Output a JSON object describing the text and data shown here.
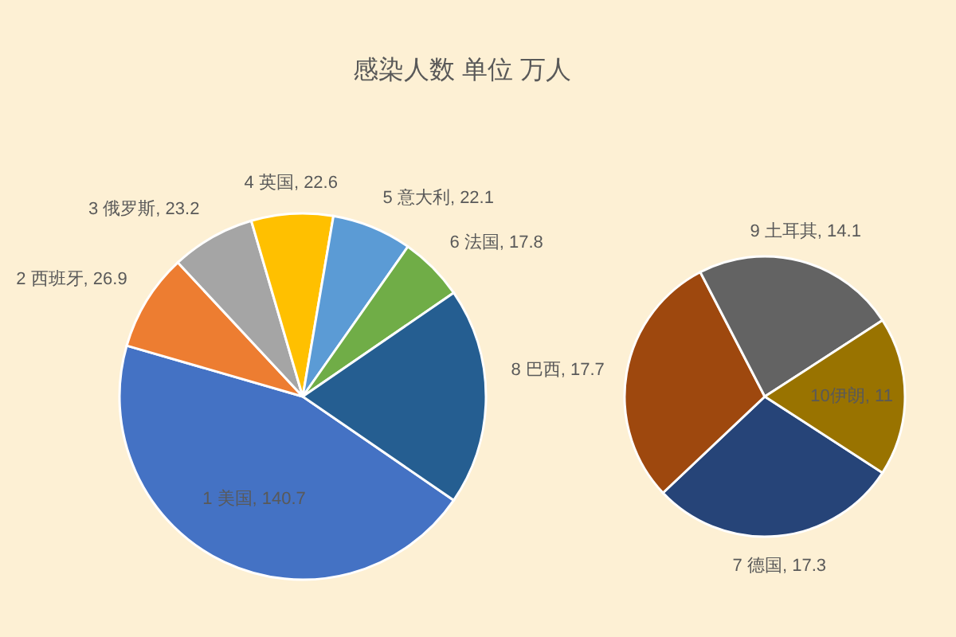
{
  "chart_data": [
    {
      "type": "pie",
      "title": "感染人数 单位 万人",
      "categories": [
        "1 美国",
        "2 西班牙",
        "3 俄罗斯",
        "4 英国",
        "5 意大利",
        "6 法国",
        null
      ],
      "values": [
        140.7,
        26.9,
        23.2,
        22.6,
        22.1,
        17.8,
        60.1
      ],
      "colors": [
        "#4472c4",
        "#ed7d31",
        "#a5a5a5",
        "#ffc000",
        "#5b9bd5",
        "#70ad47",
        "#255e91"
      ],
      "value_labels": [
        "140.7",
        "26.9",
        "23.2",
        "22.6",
        "22.1",
        "17.8",
        null
      ]
    },
    {
      "type": "pie",
      "categories": [
        "7 德国",
        "8 巴西",
        "9 土耳其",
        "10伊朗"
      ],
      "values": [
        17.3,
        17.7,
        14.1,
        11
      ],
      "colors": [
        "#264478",
        "#9e480e",
        "#636363",
        "#997300"
      ],
      "value_labels": [
        "17.3",
        "17.7",
        "14.1",
        "11"
      ]
    }
  ]
}
